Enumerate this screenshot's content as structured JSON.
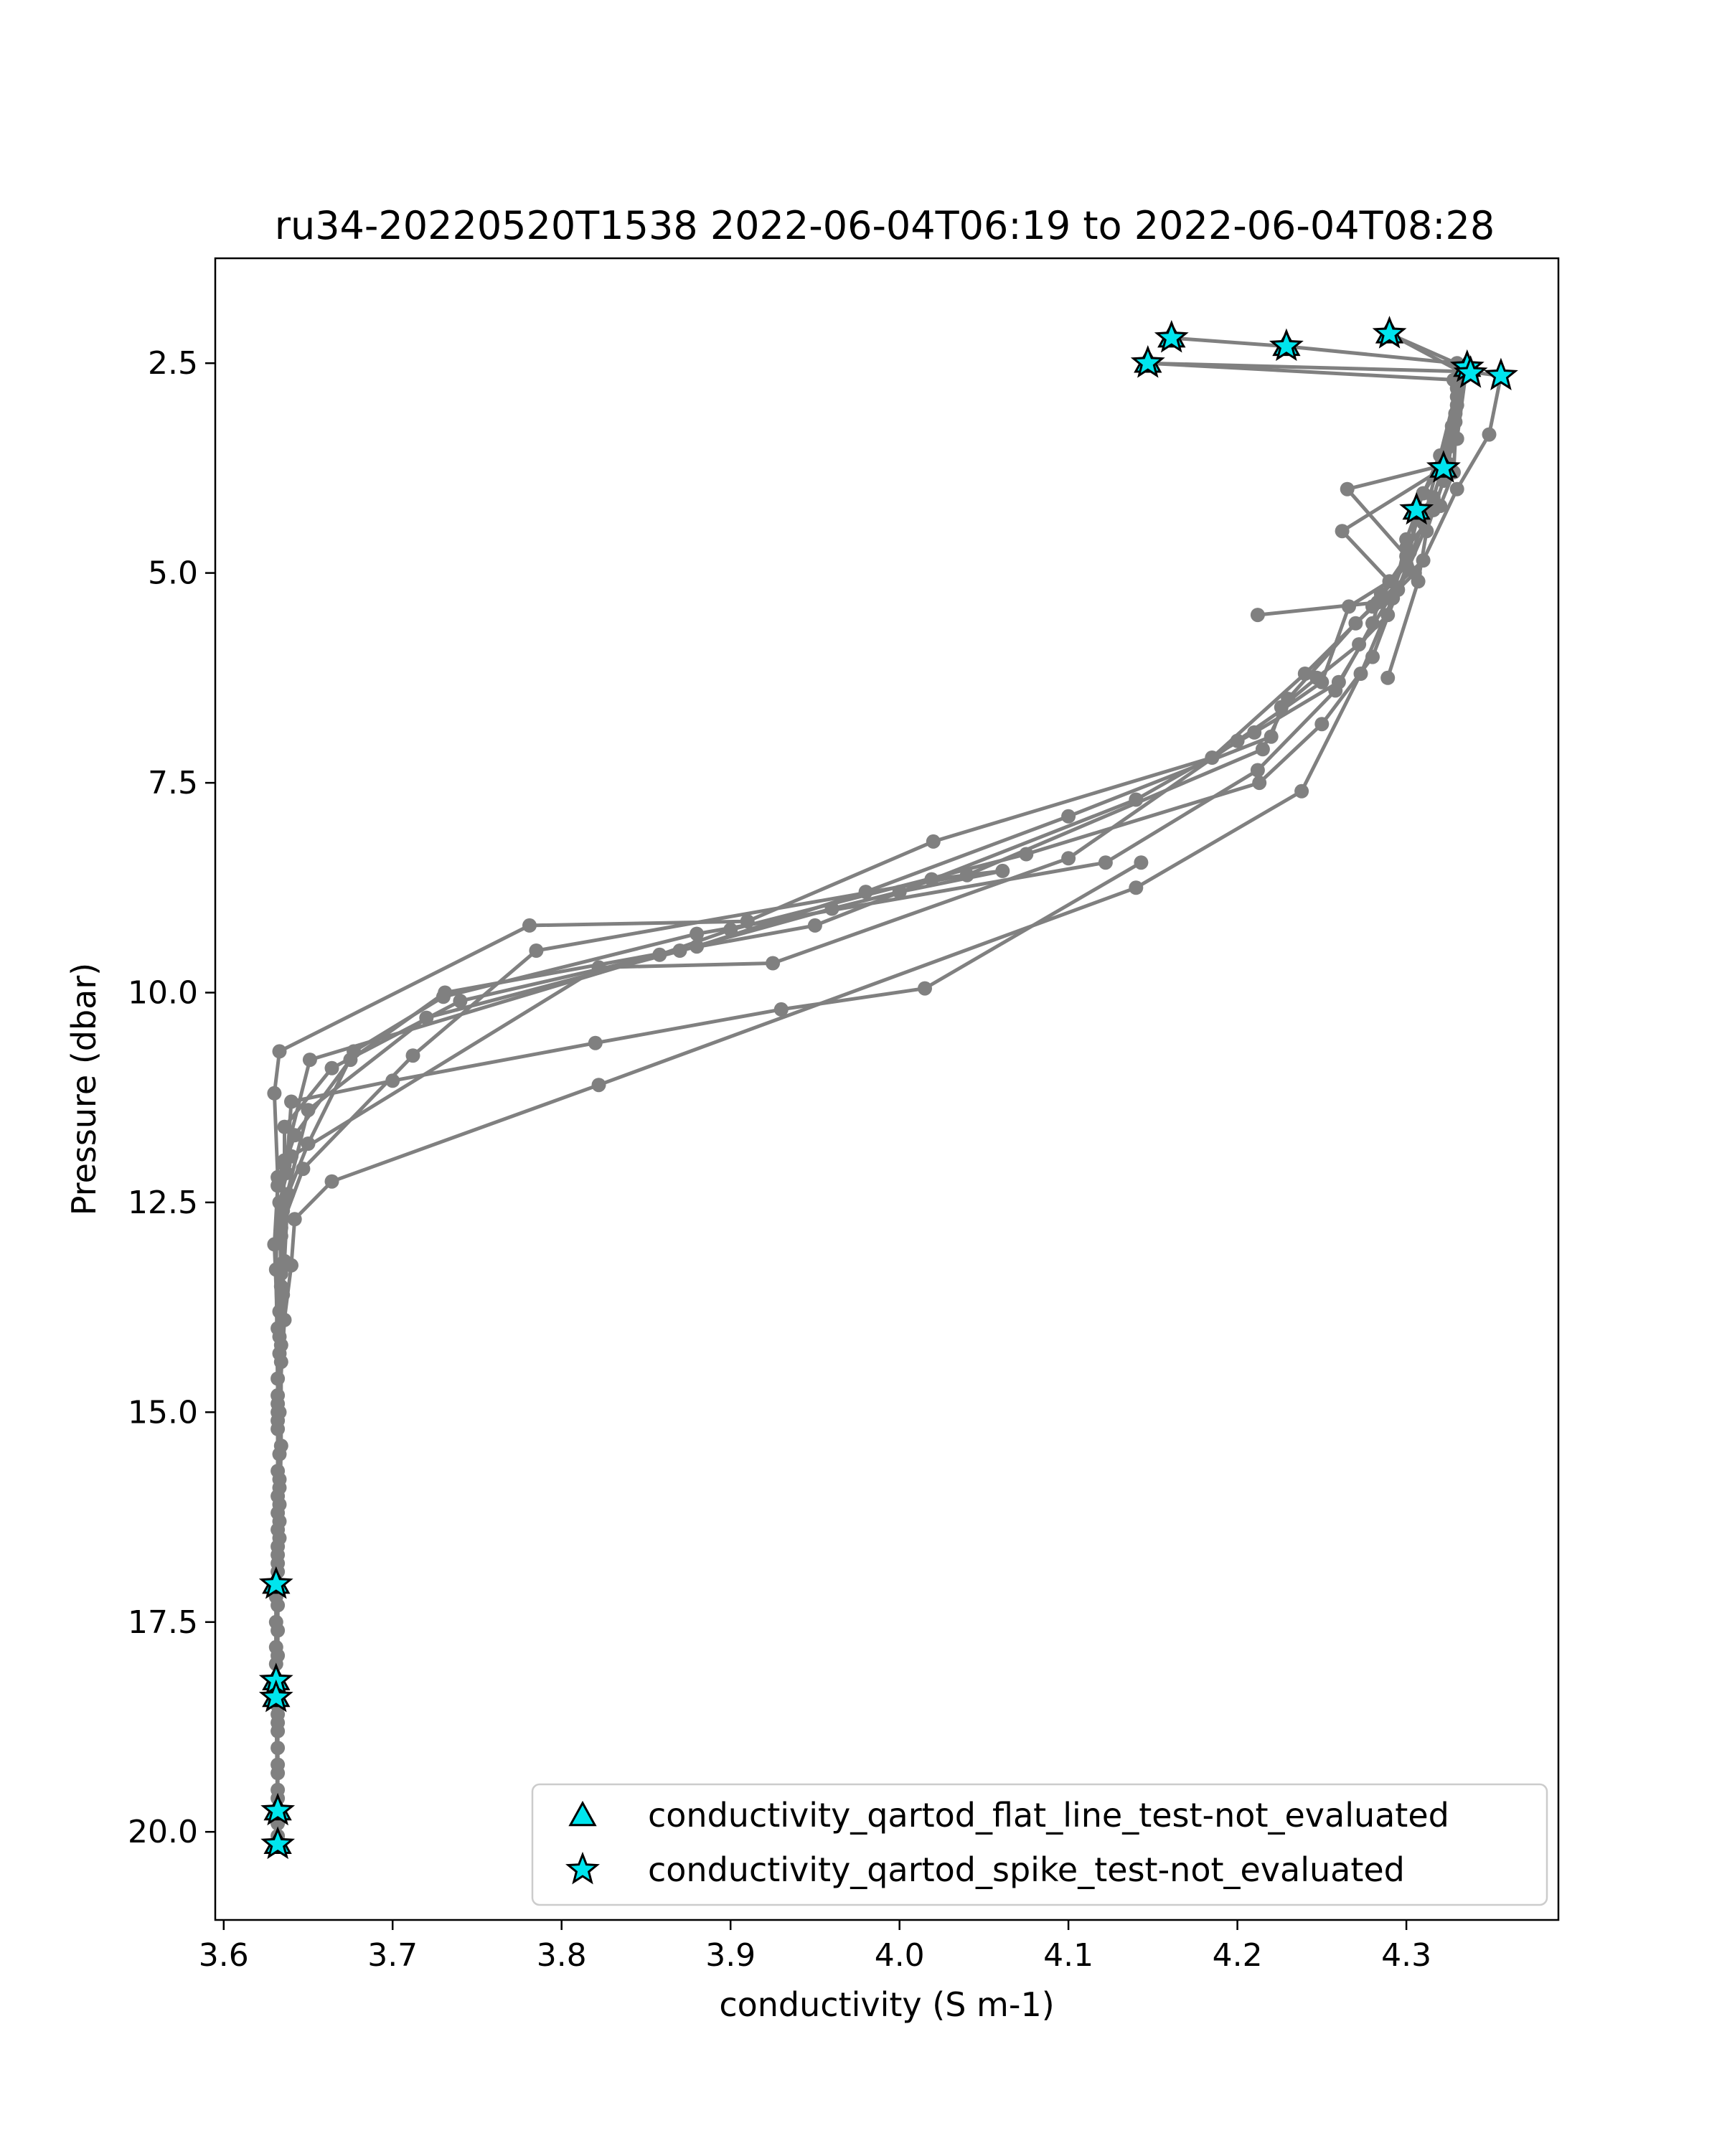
{
  "chart_data": {
    "type": "scatter",
    "title": "ru34-20220520T1538 2022-06-04T06:19 to 2022-06-04T08:28",
    "xlabel": "conductivity (S m-1)",
    "ylabel": "Pressure (dbar)",
    "xlim": [
      3.595,
      4.39
    ],
    "ylim": [
      21.05,
      1.25
    ],
    "y_inverted": true,
    "x_ticks": [
      3.6,
      3.7,
      3.8,
      3.9,
      4.0,
      4.1,
      4.2,
      4.3
    ],
    "x_tick_labels": [
      "3.6",
      "3.7",
      "3.8",
      "3.9",
      "4.0",
      "4.1",
      "4.2",
      "4.3"
    ],
    "y_ticks": [
      2.5,
      5.0,
      7.5,
      10.0,
      12.5,
      15.0,
      17.5,
      20.0
    ],
    "y_tick_labels": [
      "2.5",
      "5.0",
      "7.5",
      "10.0",
      "12.5",
      "15.0",
      "17.5",
      "20.0"
    ],
    "grid": false,
    "legend_position": "lower-right",
    "colors": {
      "profile_line": "#808080",
      "flag_fill": "#00e5ee",
      "flag_edge": "#000000"
    },
    "series": [
      {
        "name": "",
        "marker": "dot",
        "color": "#808080",
        "profiles": [
          [
            [
              4.161,
              2.2
            ],
            [
              4.229,
              2.3
            ],
            [
              4.33,
              2.5
            ],
            [
              4.328,
              2.7
            ],
            [
              4.329,
              3.1
            ],
            [
              4.325,
              3.7
            ],
            [
              4.265,
              4.0
            ],
            [
              4.3,
              4.8
            ],
            [
              4.29,
              5.3
            ],
            [
              4.26,
              6.3
            ],
            [
              4.21,
              6.9
            ],
            [
              4.14,
              7.7
            ],
            [
              3.95,
              9.2
            ],
            [
              3.731,
              10.0
            ],
            [
              3.675,
              10.8
            ],
            [
              3.642,
              11.7
            ],
            [
              3.632,
              12.3
            ],
            [
              3.63,
              13.0
            ],
            [
              3.632,
              14.0
            ],
            [
              3.633,
              15.0
            ],
            [
              3.632,
              16.0
            ],
            [
              3.631,
              17.1
            ],
            [
              3.631,
              18.0
            ],
            [
              3.632,
              19.0
            ],
            [
              3.632,
              20.1
            ]
          ],
          [
            [
              4.29,
              2.15
            ],
            [
              4.335,
              2.55
            ],
            [
              4.325,
              3.5
            ],
            [
              4.316,
              4.1
            ],
            [
              4.307,
              4.3
            ],
            [
              4.3,
              4.9
            ],
            [
              4.28,
              5.4
            ],
            [
              4.24,
              6.2
            ],
            [
              4.185,
              7.2
            ],
            [
              4.02,
              8.2
            ],
            [
              3.91,
              9.15
            ],
            [
              3.781,
              9.2
            ],
            [
              3.633,
              10.7
            ],
            [
              3.63,
              11.2
            ],
            [
              3.632,
              12.2
            ],
            [
              3.631,
              13.3
            ],
            [
              3.632,
              14.8
            ],
            [
              3.632,
              15.7
            ],
            [
              3.633,
              16.5
            ],
            [
              3.631,
              17.5
            ],
            [
              3.631,
              18.2
            ],
            [
              3.632,
              19.5
            ],
            [
              3.631,
              19.75
            ]
          ],
          [
            [
              4.147,
              2.5
            ],
            [
              4.336,
              2.6
            ],
            [
              4.356,
              2.65
            ],
            [
              4.349,
              3.35
            ],
            [
              4.33,
              4.0
            ],
            [
              4.31,
              4.85
            ],
            [
              4.27,
              5.6
            ],
            [
              4.23,
              6.5
            ],
            [
              4.215,
              7.1
            ],
            [
              4.04,
              8.6
            ],
            [
              3.785,
              9.5
            ],
            [
              3.712,
              10.75
            ],
            [
              3.647,
              12.1
            ],
            [
              3.634,
              12.8
            ],
            [
              3.633,
              13.8
            ],
            [
              3.632,
              14.9
            ],
            [
              3.632,
              16.4
            ],
            [
              3.631,
              17.05
            ],
            [
              3.631,
              18.4
            ],
            [
              3.632,
              19.9
            ],
            [
              3.632,
              20.05
            ]
          ],
          [
            [
              4.333,
              2.55
            ],
            [
              4.322,
              3.75
            ],
            [
              4.262,
              4.5
            ],
            [
              4.29,
              5.1
            ],
            [
              4.266,
              5.4
            ],
            [
              4.25,
              6.3
            ],
            [
              4.2,
              7.0
            ],
            [
              4.1,
              8.4
            ],
            [
              3.925,
              9.65
            ],
            [
              3.822,
              9.7
            ],
            [
              3.64,
              11.95
            ],
            [
              3.633,
              12.5
            ],
            [
              3.634,
              13.5
            ],
            [
              3.632,
              14.6
            ],
            [
              3.633,
              15.8
            ],
            [
              3.632,
              16.7
            ],
            [
              3.631,
              17.8
            ],
            [
              3.632,
              18.7
            ],
            [
              3.632,
              19.6
            ]
          ],
          [
            [
              4.147,
              2.5
            ],
            [
              4.33,
              2.7
            ],
            [
              4.327,
              3.25
            ],
            [
              4.306,
              4.25
            ],
            [
              4.302,
              4.75
            ],
            [
              4.285,
              5.25
            ],
            [
              4.28,
              5.6
            ],
            [
              4.258,
              6.4
            ],
            [
              4.212,
              7.35
            ],
            [
              4.122,
              8.45
            ],
            [
              3.88,
              9.3
            ],
            [
              3.73,
              10.05
            ],
            [
              3.677,
              10.7
            ],
            [
              3.65,
              11.8
            ],
            [
              3.638,
              12.4
            ],
            [
              3.636,
              13.2
            ],
            [
              3.633,
              14.1
            ],
            [
              3.632,
              15.1
            ],
            [
              3.632,
              16.2
            ],
            [
              3.631,
              17.2
            ],
            [
              3.631,
              18.3
            ],
            [
              3.632,
              19.3
            ]
          ],
          [
            [
              4.33,
              2.8
            ],
            [
              4.32,
              3.6
            ],
            [
              4.31,
              4.4
            ],
            [
              4.295,
              5.2
            ],
            [
              4.28,
              6.0
            ],
            [
              4.25,
              6.8
            ],
            [
              4.213,
              7.5
            ],
            [
              4.075,
              8.35
            ],
            [
              3.9,
              9.25
            ],
            [
              3.858,
              9.55
            ],
            [
              3.651,
              10.8
            ],
            [
              3.636,
              12.0
            ],
            [
              3.634,
              12.9
            ],
            [
              3.636,
              13.9
            ],
            [
              3.632,
              15.2
            ],
            [
              3.633,
              16.1
            ],
            [
              3.632,
              16.9
            ],
            [
              3.632,
              18.6
            ]
          ],
          [
            [
              4.335,
              2.65
            ],
            [
              4.33,
              3.4
            ],
            [
              4.31,
              4.05
            ],
            [
              4.3,
              4.6
            ],
            [
              4.292,
              5.3
            ],
            [
              4.273,
              6.2
            ],
            [
              4.238,
              7.6
            ],
            [
              4.14,
              8.75
            ],
            [
              3.822,
              11.1
            ],
            [
              3.664,
              12.25
            ],
            [
              3.642,
              12.7
            ],
            [
              3.64,
              13.25
            ],
            [
              3.634,
              14.2
            ],
            [
              3.632,
              15.0
            ],
            [
              3.633,
              15.9
            ],
            [
              3.632,
              16.8
            ],
            [
              3.632,
              17.6
            ],
            [
              3.632,
              18.5
            ],
            [
              3.632,
              19.2
            ]
          ],
          [
            [
              4.316,
              4.25
            ],
            [
              4.289,
              5.5
            ],
            [
              4.272,
              5.85
            ],
            [
              4.247,
              6.25
            ],
            [
              4.226,
              6.6
            ],
            [
              4.22,
              6.95
            ],
            [
              4.1,
              7.9
            ],
            [
              3.98,
              8.8
            ],
            [
              3.88,
              9.45
            ],
            [
              3.72,
              10.3
            ],
            [
              3.65,
              11.4
            ],
            [
              3.635,
              12.6
            ],
            [
              3.635,
              13.6
            ],
            [
              3.634,
              14.4
            ],
            [
              3.634,
              15.4
            ],
            [
              3.633,
              16.3
            ]
          ],
          [
            [
              4.212,
              5.5
            ],
            [
              4.283,
              5.35
            ],
            [
              4.29,
              5.3
            ],
            [
              4.305,
              5.0
            ],
            [
              4.3,
              4.7
            ],
            [
              4.32,
              4.2
            ],
            [
              4.328,
              3.8
            ],
            [
              4.33,
              3.0
            ],
            [
              4.332,
              2.6
            ],
            [
              4.29,
              2.15
            ]
          ],
          [
            [
              4.019,
              8.65
            ],
            [
              4.061,
              8.55
            ],
            [
              4.0,
              8.8
            ],
            [
              3.96,
              9.0
            ],
            [
              3.87,
              9.5
            ],
            [
              3.74,
              10.1
            ],
            [
              3.664,
              10.9
            ],
            [
              3.636,
              11.6
            ],
            [
              3.636,
              12.05
            ],
            [
              3.634,
              13.35
            ],
            [
              3.633,
              14.3
            ],
            [
              3.633,
              15.5
            ],
            [
              3.632,
              16.6
            ],
            [
              3.632,
              17.3
            ],
            [
              3.632,
              17.9
            ],
            [
              3.632,
              18.8
            ]
          ],
          [
            [
              4.289,
              6.25
            ],
            [
              4.307,
              5.1
            ],
            [
              4.312,
              4.5
            ],
            [
              4.322,
              3.9
            ],
            [
              4.329,
              3.2
            ],
            [
              4.33,
              2.9
            ]
          ],
          [
            [
              4.143,
              8.45
            ],
            [
              4.015,
              9.95
            ],
            [
              3.93,
              10.2
            ],
            [
              3.82,
              10.6
            ],
            [
              3.7,
              11.05
            ],
            [
              3.64,
              11.3
            ],
            [
              3.637,
              12.15
            ]
          ]
        ]
      },
      {
        "name": "conductivity_qartod_flat_line_test-not_evaluated",
        "marker": "triangle",
        "points": [
          [
            4.161,
            2.2
          ],
          [
            4.229,
            2.3
          ],
          [
            4.29,
            2.15
          ],
          [
            4.336,
            2.55
          ],
          [
            4.147,
            2.5
          ],
          [
            4.322,
            3.75
          ],
          [
            4.306,
            4.25
          ],
          [
            3.631,
            17.05
          ],
          [
            3.631,
            18.2
          ],
          [
            3.631,
            18.4
          ],
          [
            3.632,
            19.75
          ],
          [
            3.632,
            20.15
          ]
        ]
      },
      {
        "name": "conductivity_qartod_spike_test-not_evaluated",
        "marker": "star",
        "points": [
          [
            4.161,
            2.2
          ],
          [
            4.229,
            2.3
          ],
          [
            4.29,
            2.15
          ],
          [
            4.336,
            2.55
          ],
          [
            4.338,
            2.62
          ],
          [
            4.356,
            2.65
          ],
          [
            4.147,
            2.5
          ],
          [
            4.322,
            3.75
          ],
          [
            4.306,
            4.25
          ],
          [
            3.631,
            17.05
          ],
          [
            3.631,
            18.2
          ],
          [
            3.631,
            18.4
          ],
          [
            3.632,
            19.75
          ],
          [
            3.632,
            20.15
          ]
        ]
      }
    ]
  }
}
